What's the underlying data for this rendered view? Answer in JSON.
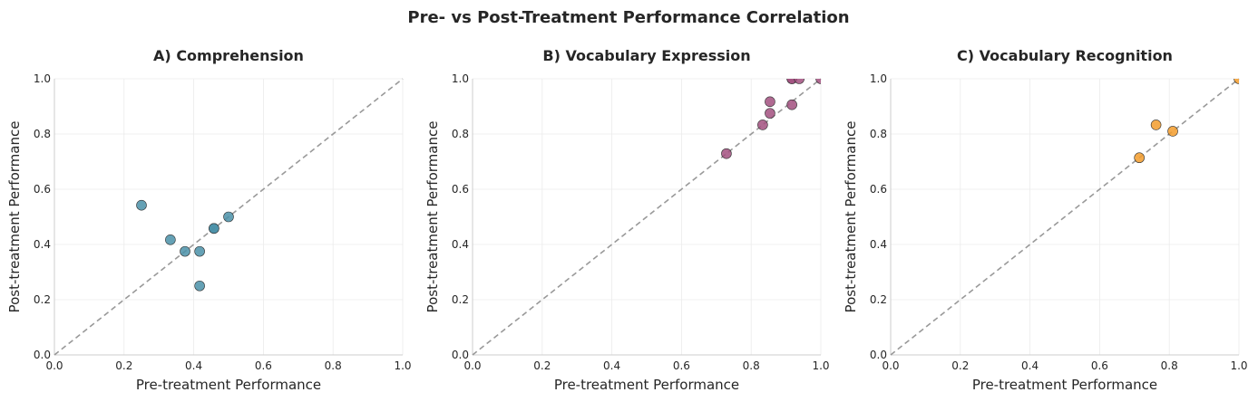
{
  "figure": {
    "title": "Pre- vs Post-Treatment Performance Correlation"
  },
  "chart_data": [
    {
      "type": "scatter",
      "title": "A) Comprehension",
      "xlabel": "Pre-treatment Performance",
      "ylabel": "Post-treatment Performance",
      "xlim": [
        0,
        1
      ],
      "ylim": [
        0,
        1
      ],
      "xticks": [
        "0.0",
        "0.2",
        "0.4",
        "0.6",
        "0.8",
        "1.0"
      ],
      "yticks": [
        "0.0",
        "0.2",
        "0.4",
        "0.6",
        "0.8",
        "1.0"
      ],
      "grid": true,
      "reference_line": "y = x (dashed)",
      "color": "#4a90a8",
      "points": [
        {
          "x": 0.25,
          "y": 0.542
        },
        {
          "x": 0.333,
          "y": 0.417
        },
        {
          "x": 0.375,
          "y": 0.375
        },
        {
          "x": 0.417,
          "y": 0.375
        },
        {
          "x": 0.417,
          "y": 0.25
        },
        {
          "x": 0.458,
          "y": 0.458
        },
        {
          "x": 0.458,
          "y": 0.458
        },
        {
          "x": 0.5,
          "y": 0.5
        }
      ]
    },
    {
      "type": "scatter",
      "title": "B) Vocabulary Expression",
      "xlabel": "Pre-treatment Performance",
      "ylabel": "Post-treatment Performance",
      "xlim": [
        0,
        1
      ],
      "ylim": [
        0,
        1
      ],
      "xticks": [
        "0.0",
        "0.2",
        "0.4",
        "0.6",
        "0.8",
        "1.0"
      ],
      "yticks": [
        "0.0",
        "0.2",
        "0.4",
        "0.6",
        "0.8",
        "1.0"
      ],
      "grid": true,
      "reference_line": "y = x (dashed)",
      "color": "#a2507f",
      "points": [
        {
          "x": 0.729,
          "y": 0.729
        },
        {
          "x": 0.833,
          "y": 0.833
        },
        {
          "x": 0.854,
          "y": 0.875
        },
        {
          "x": 0.854,
          "y": 0.917
        },
        {
          "x": 0.917,
          "y": 0.906
        },
        {
          "x": 0.917,
          "y": 1.0
        },
        {
          "x": 0.917,
          "y": 1.0
        },
        {
          "x": 0.938,
          "y": 1.0
        },
        {
          "x": 1.0,
          "y": 1.0
        }
      ]
    },
    {
      "type": "scatter",
      "title": "C) Vocabulary Recognition",
      "xlabel": "Pre-treatment Performance",
      "ylabel": "Post-treatment Performance",
      "xlim": [
        0,
        1
      ],
      "ylim": [
        0,
        1
      ],
      "xticks": [
        "0.0",
        "0.2",
        "0.4",
        "0.6",
        "0.8",
        "1.0"
      ],
      "yticks": [
        "0.0",
        "0.2",
        "0.4",
        "0.6",
        "0.8",
        "1.0"
      ],
      "grid": true,
      "reference_line": "y = x (dashed)",
      "color": "#f39c2b",
      "points": [
        {
          "x": 0.714,
          "y": 0.714
        },
        {
          "x": 0.762,
          "y": 0.833
        },
        {
          "x": 0.81,
          "y": 0.81
        },
        {
          "x": 1.0,
          "y": 1.0
        }
      ]
    }
  ]
}
